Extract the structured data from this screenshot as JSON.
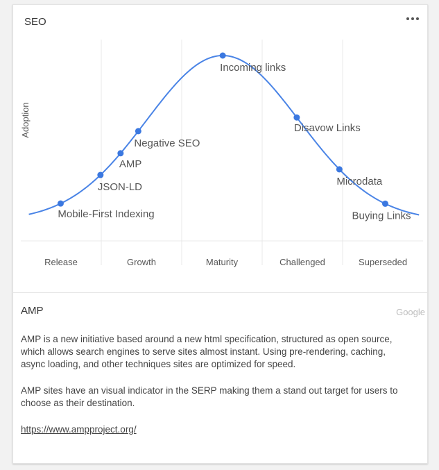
{
  "card": {
    "title": "SEO"
  },
  "chart_data": {
    "type": "line",
    "ylabel": "Adoption",
    "phases": [
      "Release",
      "Growth",
      "Maturity",
      "Challenged",
      "Superseded"
    ],
    "curve": "bell",
    "points": [
      {
        "label": "Mobile-First Indexing",
        "x": 0.495,
        "y": 0.03
      },
      {
        "label": "JSON-LD",
        "x": 0.99,
        "y": 0.27
      },
      {
        "label": "AMP",
        "x": 1.24,
        "y": 0.5
      },
      {
        "label": "Negative SEO",
        "x": 1.46,
        "y": 0.61
      },
      {
        "label": "Incoming links",
        "x": 2.51,
        "y": 1.0
      },
      {
        "label": "Disavow Links",
        "x": 3.43,
        "y": 0.64
      },
      {
        "label": "Microdata",
        "x": 3.96,
        "y": 0.23
      },
      {
        "label": "Buying Links",
        "x": 4.53,
        "y": 0.03
      }
    ],
    "colors": {
      "line": "#4a84e6",
      "point": "#3b78e0",
      "label": "#555555",
      "grid": "#e8e8e8"
    }
  },
  "detail": {
    "title": "AMP",
    "source": "Google",
    "paragraphs": [
      "AMP is a new initiative based around a new html specification, structured as open source, which allows search engines to serve sites almost instant. Using pre-rendering, caching, async loading, and other techniques sites are optimized for speed.",
      "AMP sites have an visual indicator in the SERP making them a stand out target for users to choose as their destination."
    ],
    "link": "https://www.ampproject.org/"
  }
}
